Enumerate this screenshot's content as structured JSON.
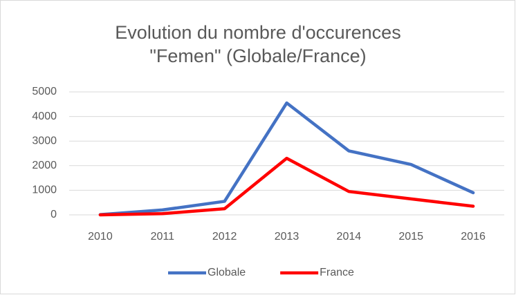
{
  "chart_data": {
    "type": "line",
    "title": [
      "Evolution du nombre d'occurences",
      "\"Femen\" (Globale/France)"
    ],
    "categories": [
      "2010",
      "2011",
      "2012",
      "2013",
      "2014",
      "2015",
      "2016"
    ],
    "series": [
      {
        "name": "Globale",
        "color": "#4472c4",
        "values": [
          10,
          200,
          550,
          4550,
          2600,
          2050,
          900
        ]
      },
      {
        "name": "France",
        "color": "#ff0000",
        "values": [
          0,
          50,
          250,
          2300,
          950,
          650,
          350
        ]
      }
    ],
    "ylim": [
      0,
      5000
    ],
    "yticks": [
      0,
      1000,
      2000,
      3000,
      4000,
      5000
    ],
    "grid": true,
    "legend": "bottom"
  }
}
